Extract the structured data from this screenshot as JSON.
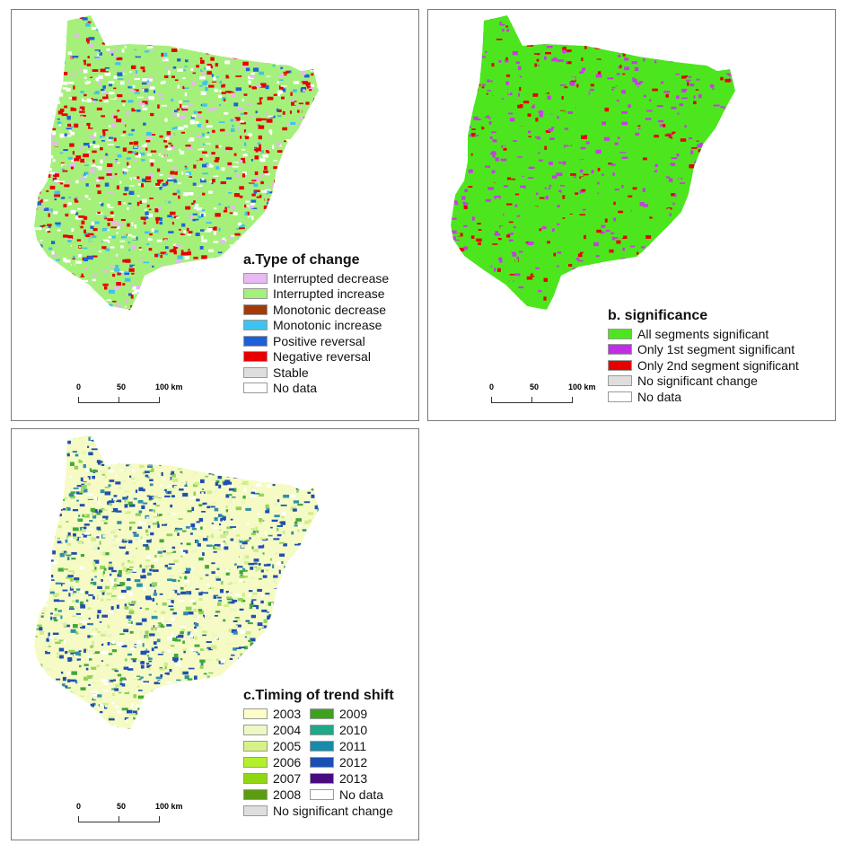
{
  "panels": [
    {
      "id": "a",
      "title": "a.Type of change",
      "map_palette": [
        "#a5f07a",
        "#a5f07a",
        "#a5f07a",
        "#e60000",
        "#e60000",
        "#3ec3ee",
        "#ffffff",
        "#a5f07a",
        "#e60000",
        "#ffffff",
        "#1f63d6",
        "#e6b8f0"
      ],
      "legend": [
        {
          "label": "Interrupted decrease",
          "color": "#e8b9f2"
        },
        {
          "label": "Interrupted increase",
          "color": "#a3f07a"
        },
        {
          "label": "Monotonic decrease",
          "color": "#a33a0a"
        },
        {
          "label": "Monotonic increase",
          "color": "#3ec3ee"
        },
        {
          "label": "Positive reversal",
          "color": "#1c5fd9"
        },
        {
          "label": "Negative reversal",
          "color": "#e60000"
        },
        {
          "label": "Stable",
          "color": "#dedede"
        },
        {
          "label": "No data",
          "color": "#ffffff"
        }
      ],
      "scale": {
        "labels": [
          "0",
          "50",
          "100 km"
        ]
      }
    },
    {
      "id": "b",
      "title": "b. significance",
      "map_palette": [
        "#4de61e",
        "#4de61e",
        "#4de61e",
        "#4de61e",
        "#4de61e",
        "#c43ee0",
        "#4de61e",
        "#4de61e",
        "#c43ee0",
        "#e60000",
        "#4de61e",
        "#4de61e"
      ],
      "legend": [
        {
          "label": "All segments significant",
          "color": "#4de61e"
        },
        {
          "label": "Only 1st segment significant",
          "color": "#c02ee6"
        },
        {
          "label": "Only 2nd segment significant",
          "color": "#e60000"
        },
        {
          "label": "No significant change",
          "color": "#dedede"
        },
        {
          "label": "No data",
          "color": "#ffffff"
        }
      ],
      "scale": {
        "labels": [
          "0",
          "50",
          "100 km"
        ]
      }
    },
    {
      "id": "c",
      "title": "c.Timing of trend shift",
      "map_palette": [
        "#f6fbc6",
        "#f6fbc6",
        "#eaf7bf",
        "#cfee8a",
        "#1f4fb0",
        "#1f4fb0",
        "#2f8fa8",
        "#43a83a",
        "#f6fbc6",
        "#1f4fb0",
        "#8fd45a",
        "#ffffff"
      ],
      "legend": [
        {
          "label": "2003",
          "color": "#fdfdc8"
        },
        {
          "label": "2009",
          "color": "#3ea11d"
        },
        {
          "label": "2004",
          "color": "#ecf9c4"
        },
        {
          "label": "2010",
          "color": "#1fa88a"
        },
        {
          "label": "2005",
          "color": "#d6f285"
        },
        {
          "label": "2011",
          "color": "#1a8aa8"
        },
        {
          "label": "2006",
          "color": "#b2f02b"
        },
        {
          "label": "2012",
          "color": "#1a4fb3"
        },
        {
          "label": "2007",
          "color": "#8fd80f"
        },
        {
          "label": "2013",
          "color": "#4a0a80"
        },
        {
          "label": "2008",
          "color": "#5c9b12"
        },
        {
          "label": "No data",
          "color": "#ffffff"
        }
      ],
      "legend_extra": {
        "label": "No significant change",
        "color": "#dedede"
      },
      "scale": {
        "labels": [
          "0",
          "50",
          "100 km"
        ]
      }
    }
  ]
}
